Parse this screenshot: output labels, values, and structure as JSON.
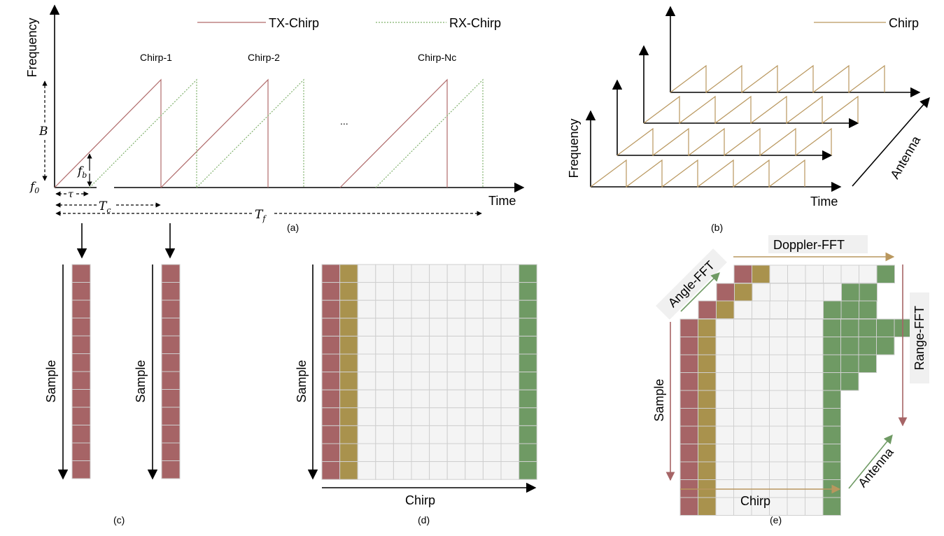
{
  "colors": {
    "tx": "#b06b6b",
    "rx": "#7fb06b",
    "gold": "#a9924d",
    "green": "#6f9a64",
    "red": "#a66466",
    "cell_empty": "#f4f4f4",
    "cell_border": "#cfcfcf",
    "chirp_line": "#b9975e"
  },
  "panel_a": {
    "legend_tx": "TX-Chirp",
    "legend_rx": "RX-Chirp",
    "y_axis": "Frequency",
    "x_axis": "Time",
    "chirp_labels": [
      "Chirp-1",
      "Chirp-2",
      "Chirp-Nc"
    ],
    "ellipsis": "...",
    "sym_B": "B",
    "sym_f0": "f",
    "sym_f0_sub": "0",
    "sym_fb": "f",
    "sym_fb_sub": "b",
    "sym_tau": "τ",
    "sym_Tc": "T",
    "sym_Tc_sub": "c",
    "sym_Tf": "T",
    "sym_Tf_sub": "f",
    "caption": "(a)"
  },
  "panel_b": {
    "legend": "Chirp",
    "y_axis": "Frequency",
    "x_axis": "Time",
    "depth_axis": "Antenna",
    "caption": "(b)"
  },
  "panel_c": {
    "y_label_1": "Sample",
    "y_label_2": "Sample",
    "caption": "(c)"
  },
  "panel_d": {
    "y_axis": "Sample",
    "x_axis": "Chirp",
    "caption": "(d)"
  },
  "panel_e": {
    "doppler": "Doppler-FFT",
    "angle": "Angle-FFT",
    "range": "Range-FFT",
    "y_axis": "Sample",
    "x_axis": "Chirp",
    "depth_axis": "Antenna",
    "caption": "(e)"
  }
}
